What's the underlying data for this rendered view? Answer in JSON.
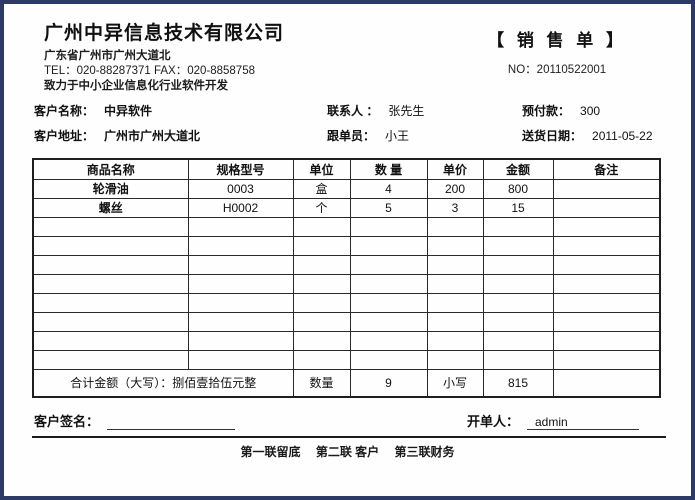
{
  "company": {
    "name": "广州中异信息技术有限公司",
    "address": "广东省广州市广州大道北",
    "tel_fax": "TEL：020-88287371 FAX：020-8858758",
    "slogan": "致力于中小企业信息化行业软件开发"
  },
  "doc": {
    "title": "【 销  售  单 】",
    "no": "NO：20110522001"
  },
  "info": {
    "customer_name_label": "客户名称：",
    "customer_name": "中异软件",
    "contact_label": "联系人 ：",
    "contact": "张先生",
    "prepay_label": "预付款：",
    "prepay": "300",
    "customer_addr_label": "客户地址：",
    "customer_addr": "广州市广州大道北",
    "follower_label": "跟单员：",
    "follower": "小王",
    "delivery_label": "送货日期：",
    "delivery": "2011-05-22"
  },
  "table": {
    "headers": [
      "商品名称",
      "规格型号",
      "单位",
      "数 量",
      "单价",
      "金额",
      "备注"
    ],
    "rows": [
      [
        "轮滑油",
        "0003",
        "盒",
        "4",
        "200",
        "800",
        ""
      ],
      [
        "螺丝",
        "H0002",
        "个",
        "5",
        "3",
        "15",
        ""
      ]
    ],
    "empty_row_count": 8,
    "summary": {
      "total_label": "合计金额（大写）：捌佰壹拾伍元整",
      "qty_label": "数量",
      "qty_value": "9",
      "lower_label": "小写",
      "lower_value": "815"
    }
  },
  "footer": {
    "sign_label": "客户签名：",
    "issuer_label": "开单人：",
    "issuer_value": "admin",
    "copies": "第一联留底　 第二联 客户　 第三联财务"
  }
}
